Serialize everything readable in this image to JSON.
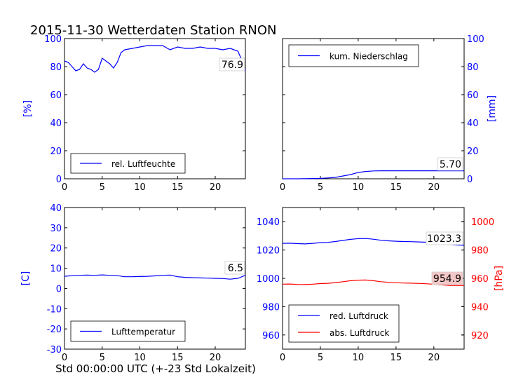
{
  "title": "2015-11-30 Wetterdaten Station RNON",
  "xlabel": "Std 00:00:00 UTC (+-23 Std Lokalzeit)",
  "colors": {
    "blue": "#0000ff",
    "red": "#ff0000",
    "black": "#000000",
    "value_box_red": "#f4c7c7"
  },
  "chart_data": [
    {
      "id": "humidity",
      "type": "line",
      "xlim": [
        0,
        24
      ],
      "ylim": [
        0,
        100
      ],
      "x_ticks": [
        "0",
        "5",
        "10",
        "15",
        "20"
      ],
      "y_ticks": [
        "0",
        "20",
        "40",
        "60",
        "80",
        "100"
      ],
      "ylabel": "[%]",
      "current_value": "76.9",
      "series": [
        {
          "name": "rel. Luftfeuchte",
          "color": "#0000ff",
          "x": [
            0,
            0.5,
            1,
            1.5,
            2,
            2.5,
            3,
            3.5,
            4,
            4.5,
            5,
            5.5,
            6,
            6.5,
            7,
            7.5,
            8,
            9,
            10,
            11,
            12,
            13,
            14,
            15,
            16,
            17,
            18,
            19,
            20,
            21,
            22,
            23,
            23.5,
            24
          ],
          "y": [
            84,
            83,
            80,
            77,
            78,
            82,
            79,
            78,
            76,
            78,
            86,
            84,
            82,
            79,
            83,
            90,
            92,
            93,
            94,
            95,
            95,
            95,
            92,
            94,
            93,
            93,
            94,
            93,
            93,
            92,
            93,
            91,
            85,
            77
          ]
        }
      ]
    },
    {
      "id": "precipitation",
      "type": "line",
      "xlim": [
        0,
        24
      ],
      "ylim": [
        0,
        100
      ],
      "x_ticks": [
        "0",
        "5",
        "10",
        "15",
        "20"
      ],
      "y_ticks": [
        "0",
        "20",
        "40",
        "60",
        "80",
        "100"
      ],
      "ylabel": "[mm]",
      "current_value": "5.70",
      "series": [
        {
          "name": "kum. Niederschlag",
          "color": "#0000ff",
          "x": [
            0,
            2,
            4,
            5,
            6,
            7,
            8,
            9,
            10,
            11,
            12,
            13,
            14,
            16,
            18,
            20,
            22,
            24
          ],
          "y": [
            0,
            0,
            0.2,
            0.3,
            0.6,
            1.0,
            2.0,
            3.0,
            4.5,
            5.2,
            5.6,
            5.7,
            5.7,
            5.7,
            5.7,
            5.7,
            5.7,
            5.7
          ]
        }
      ]
    },
    {
      "id": "temperature",
      "type": "line",
      "xlim": [
        0,
        24
      ],
      "ylim": [
        -30,
        40
      ],
      "x_ticks": [
        "0",
        "5",
        "10",
        "15",
        "20"
      ],
      "y_ticks": [
        "-30",
        "-20",
        "-10",
        "0",
        "10",
        "20",
        "30",
        "40"
      ],
      "ylabel": "[C]",
      "current_value": "6.5",
      "series": [
        {
          "name": "Lufttemperatur",
          "color": "#0000ff",
          "x": [
            0,
            1,
            2,
            3,
            4,
            5,
            6,
            7,
            8,
            9,
            10,
            11,
            12,
            13,
            14,
            15,
            16,
            17,
            18,
            19,
            20,
            21,
            22,
            23,
            24
          ],
          "y": [
            6.0,
            6.3,
            6.5,
            6.6,
            6.5,
            6.7,
            6.5,
            6.3,
            5.8,
            5.8,
            5.9,
            6.0,
            6.2,
            6.5,
            6.6,
            5.8,
            5.5,
            5.3,
            5.2,
            5.1,
            5.0,
            4.9,
            4.6,
            5.0,
            6.5
          ]
        }
      ]
    },
    {
      "id": "pressure",
      "type": "line",
      "xlim": [
        0,
        24
      ],
      "ylim": [
        950,
        1050
      ],
      "y2lim": [
        910,
        1010
      ],
      "x_ticks": [
        "0",
        "5",
        "10",
        "15",
        "20"
      ],
      "y_ticks": [
        "960",
        "980",
        "1000",
        "1020",
        "1040"
      ],
      "y2_ticks": [
        "920",
        "940",
        "960",
        "980",
        "1000"
      ],
      "y2label": "[hPa]",
      "current_value": "1023.3",
      "current_value2": "954.9",
      "series": [
        {
          "name": "red. Luftdruck",
          "color": "#0000ff",
          "axis": "left",
          "x": [
            0,
            1,
            2,
            3,
            4,
            5,
            6,
            7,
            8,
            9,
            10,
            11,
            12,
            13,
            14,
            15,
            16,
            17,
            18,
            19,
            20,
            21,
            22,
            23,
            24
          ],
          "y": [
            1024.7,
            1024.8,
            1024.5,
            1024.3,
            1024.7,
            1025.2,
            1025.4,
            1026.0,
            1026.8,
            1027.5,
            1028.0,
            1028.1,
            1027.6,
            1026.9,
            1026.5,
            1026.2,
            1026.0,
            1025.9,
            1025.7,
            1025.5,
            1025.0,
            1024.5,
            1024.0,
            1023.5,
            1023.3
          ]
        },
        {
          "name": "abs. Luftdruck",
          "color": "#ff0000",
          "axis": "right",
          "x": [
            0,
            1,
            2,
            3,
            4,
            5,
            6,
            7,
            8,
            9,
            10,
            11,
            12,
            13,
            14,
            15,
            16,
            17,
            18,
            19,
            20,
            21,
            22,
            23,
            24
          ],
          "y": [
            955.9,
            956.0,
            955.7,
            955.6,
            955.9,
            956.3,
            956.5,
            957.0,
            957.6,
            958.3,
            958.7,
            958.8,
            958.3,
            957.6,
            957.2,
            956.9,
            956.7,
            956.6,
            956.4,
            956.2,
            955.8,
            955.4,
            955.0,
            954.9,
            954.9
          ]
        }
      ]
    }
  ]
}
